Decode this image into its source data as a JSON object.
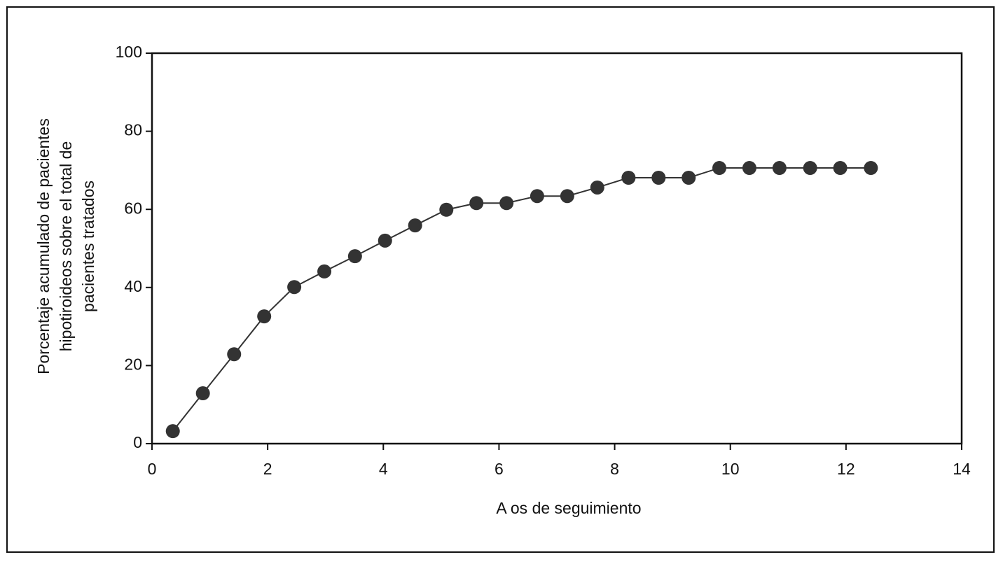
{
  "chart_data": {
    "type": "line",
    "x_label": "A os de seguimiento",
    "y_label": [
      "Porcentaje acumulado de pacientes",
      "hipotiroideos sobre el total de",
      "pacientes tratados"
    ],
    "series": [
      {
        "color": "#333333",
        "x": [
          0.36,
          0.88,
          1.42,
          1.94,
          2.46,
          2.98,
          3.51,
          4.03,
          4.55,
          5.09,
          5.61,
          6.13,
          6.66,
          7.18,
          7.7,
          8.24,
          8.76,
          9.28,
          9.81,
          10.33,
          10.85,
          11.38,
          11.9,
          12.43
        ],
        "values": [
          3.2,
          12.9,
          22.9,
          32.6,
          40.1,
          44.1,
          48.0,
          52.0,
          55.9,
          59.9,
          61.6,
          61.6,
          63.4,
          63.4,
          65.6,
          68.1,
          68.1,
          68.1,
          70.6,
          70.6,
          70.6,
          70.6,
          70.6,
          70.6
        ]
      }
    ],
    "xlim": [
      0,
      14
    ],
    "xticks": [
      0,
      2,
      4,
      6,
      8,
      10,
      12,
      14
    ],
    "ylim": [
      0,
      100
    ],
    "yticks": [
      0,
      20,
      40,
      60,
      80,
      100
    ]
  }
}
